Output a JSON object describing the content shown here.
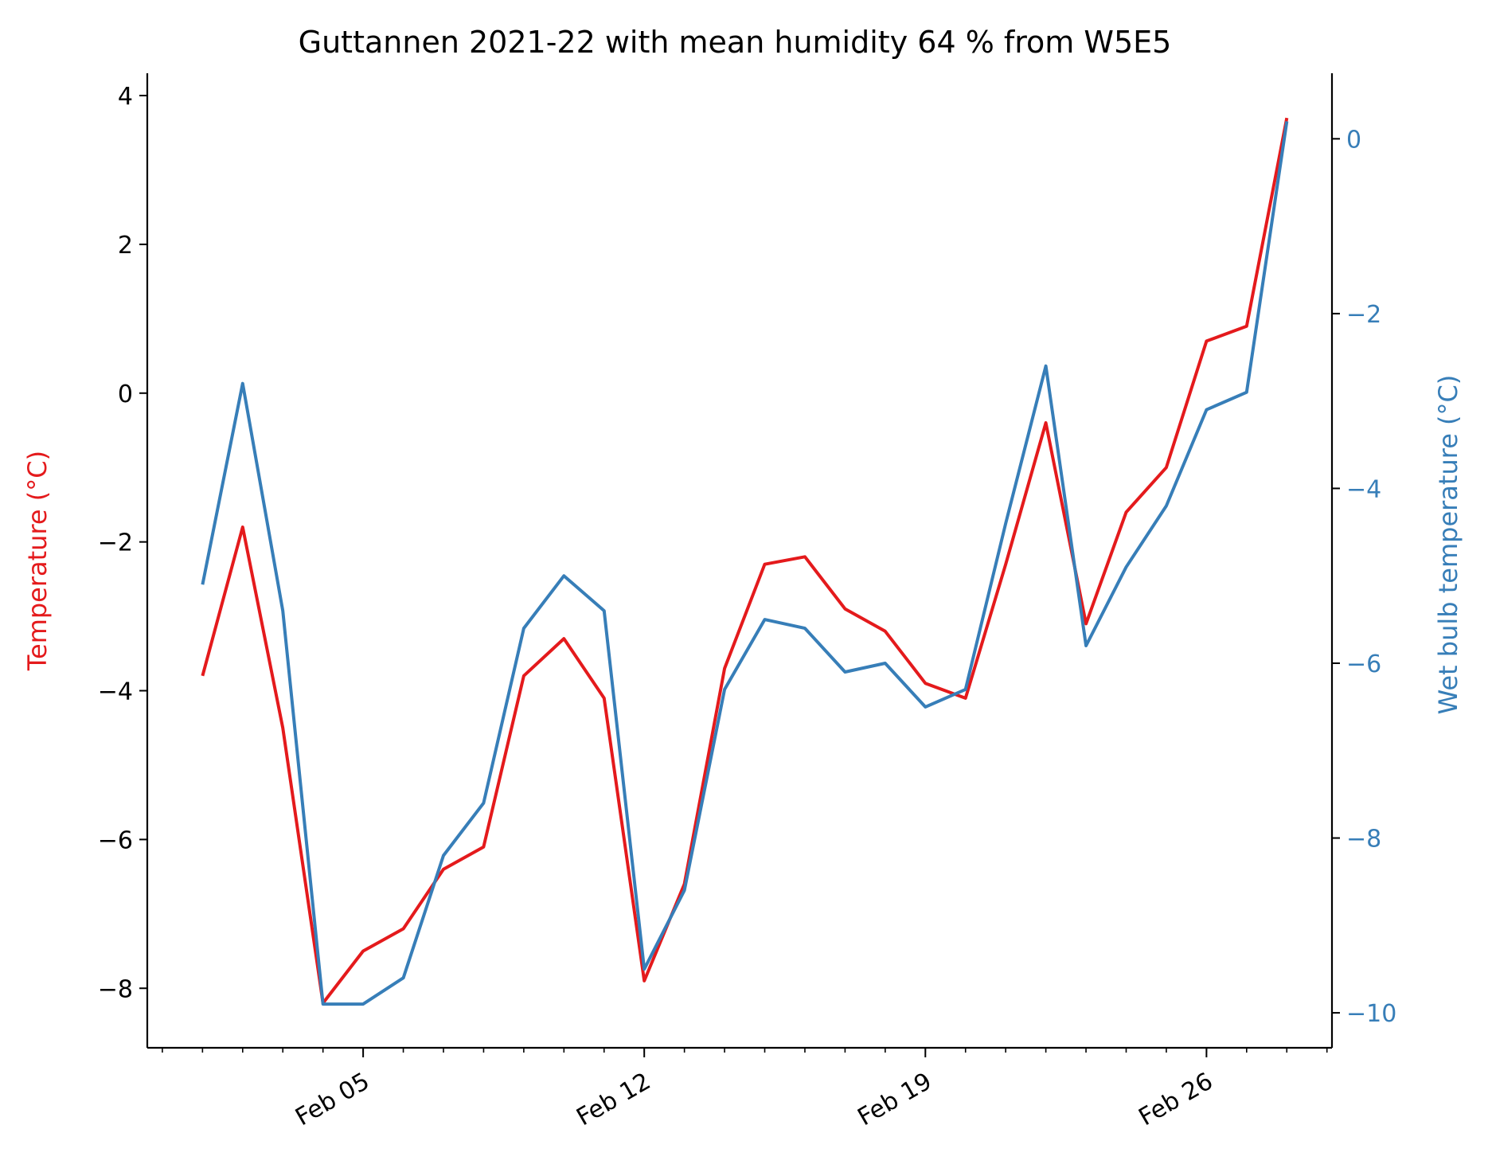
{
  "chart_data": {
    "type": "line",
    "title": "Guttannen 2021-22 with mean humidity 64 % from W5E5",
    "x": [
      "2022-02-01",
      "2022-02-02",
      "2022-02-03",
      "2022-02-04",
      "2022-02-05",
      "2022-02-06",
      "2022-02-07",
      "2022-02-08",
      "2022-02-09",
      "2022-02-10",
      "2022-02-11",
      "2022-02-12",
      "2022-02-13",
      "2022-02-14",
      "2022-02-15",
      "2022-02-16",
      "2022-02-17",
      "2022-02-18",
      "2022-02-19",
      "2022-02-20",
      "2022-02-21",
      "2022-02-22",
      "2022-02-23",
      "2022-02-24",
      "2022-02-25",
      "2022-02-26",
      "2022-02-27",
      "2022-02-28"
    ],
    "x_ticks": [
      "2022-02-05",
      "2022-02-12",
      "2022-02-19",
      "2022-02-26"
    ],
    "x_tick_labels": [
      "Feb 05",
      "Feb 12",
      "Feb 19",
      "Feb 26"
    ],
    "xlim": [
      "2022-01-30T15:00",
      "2022-03-01T03:00"
    ],
    "series": [
      {
        "axis": "left",
        "color": "#e41a1c",
        "values": [
          -3.8,
          -1.8,
          -4.5,
          -8.2,
          -7.5,
          -7.2,
          -6.4,
          -6.1,
          -3.8,
          -3.3,
          -4.1,
          -7.9,
          -6.6,
          -3.7,
          -2.3,
          -2.2,
          -2.9,
          -3.2,
          -3.9,
          -4.1,
          -2.3,
          -0.4,
          -3.1,
          -1.6,
          -1.0,
          0.7,
          0.9,
          3.7
        ]
      },
      {
        "axis": "right",
        "color": "#377eb8",
        "values": [
          -5.1,
          -2.8,
          -5.4,
          -9.9,
          -9.9,
          -9.6,
          -8.2,
          -7.6,
          -5.6,
          -5.0,
          -5.4,
          -9.5,
          -8.6,
          -6.3,
          -5.5,
          -5.6,
          -6.1,
          -6.0,
          -6.5,
          -6.3,
          -4.4,
          -2.6,
          -5.8,
          -4.9,
          -4.2,
          -3.1,
          -2.9,
          0.2
        ]
      }
    ],
    "left_axis": {
      "label": "Temperature (°C)",
      "ylim": [
        -8.8,
        4.3
      ],
      "ticks": [
        -8,
        -6,
        -4,
        -2,
        0,
        2,
        4
      ],
      "tick_labels": [
        "−8",
        "−6",
        "−4",
        "−2",
        "0",
        "2",
        "4"
      ],
      "label_color": "#e41a1c",
      "tick_color": "#000000"
    },
    "right_axis": {
      "label": "Wet bulb temperature (°C)",
      "ylim": [
        -10.4,
        0.75
      ],
      "ticks": [
        -10,
        -8,
        -6,
        -4,
        -2,
        0
      ],
      "tick_labels": [
        "−10",
        "−8",
        "−6",
        "−4",
        "−2",
        "0"
      ],
      "color": "#377eb8"
    },
    "grid": false,
    "legend": "none"
  }
}
